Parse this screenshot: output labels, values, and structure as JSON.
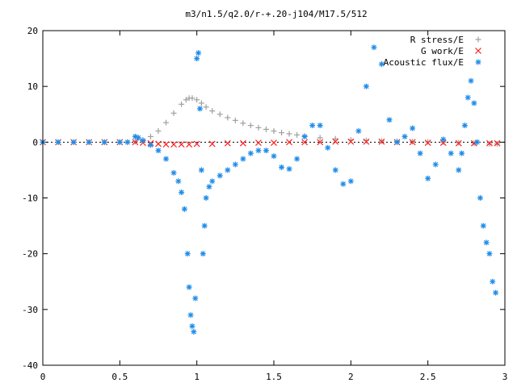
{
  "chart_data": {
    "type": "scatter",
    "title": "m3/n1.5/q2.0/r-+.20-j104/M17.5/512",
    "xlabel": "",
    "ylabel": "",
    "xlim": [
      0,
      3
    ],
    "ylim": [
      -40,
      20
    ],
    "x_ticks": [
      0,
      0.5,
      1,
      1.5,
      2,
      2.5,
      3
    ],
    "x_tick_labels": [
      "0",
      "0.5",
      "1",
      "1.5",
      "2",
      "2.5",
      "3"
    ],
    "y_ticks": [
      -40,
      -30,
      -20,
      -10,
      0,
      10,
      20
    ],
    "y_tick_labels": [
      "-40",
      "-30",
      "-20",
      "-10",
      "0",
      "10",
      "20"
    ],
    "grid": false,
    "legend_position": "top-right",
    "series": [
      {
        "name": "R stress/E",
        "marker": "plus",
        "color": "#a0a0a0",
        "x": [
          0,
          0.1,
          0.2,
          0.3,
          0.4,
          0.5,
          0.55,
          0.6,
          0.65,
          0.7,
          0.75,
          0.8,
          0.85,
          0.9,
          0.93,
          0.95,
          0.97,
          1.0,
          1.03,
          1.06,
          1.1,
          1.15,
          1.2,
          1.25,
          1.3,
          1.35,
          1.4,
          1.45,
          1.5,
          1.55,
          1.6,
          1.65,
          1.7,
          1.8,
          1.9,
          2.0,
          2.1,
          2.2,
          2.3,
          2.4,
          2.5,
          2.6,
          2.7,
          2.8,
          2.9,
          2.95
        ],
        "y": [
          0,
          0,
          0,
          0,
          0,
          0,
          0,
          0.1,
          0.4,
          1.0,
          2.0,
          3.5,
          5.2,
          6.8,
          7.6,
          7.9,
          7.9,
          7.6,
          7.0,
          6.3,
          5.6,
          5.0,
          4.4,
          3.9,
          3.4,
          3.0,
          2.6,
          2.3,
          2.0,
          1.7,
          1.5,
          1.3,
          1.1,
          0.8,
          0.6,
          0.4,
          0.3,
          0.2,
          0.15,
          0.1,
          0.05,
          0,
          -0.1,
          -0.2,
          -0.3,
          -0.3
        ]
      },
      {
        "name": "G work/E",
        "marker": "cross",
        "color": "#ff2020",
        "x": [
          0,
          0.1,
          0.2,
          0.3,
          0.4,
          0.5,
          0.6,
          0.65,
          0.7,
          0.75,
          0.8,
          0.85,
          0.9,
          0.95,
          1.0,
          1.1,
          1.2,
          1.3,
          1.4,
          1.5,
          1.6,
          1.7,
          1.8,
          1.9,
          2.0,
          2.1,
          2.2,
          2.3,
          2.4,
          2.5,
          2.6,
          2.7,
          2.8,
          2.9,
          2.95
        ],
        "y": [
          0,
          0,
          0,
          0,
          0,
          0,
          0,
          -0.1,
          -0.2,
          -0.3,
          -0.4,
          -0.4,
          -0.4,
          -0.4,
          -0.3,
          -0.3,
          -0.2,
          -0.2,
          -0.1,
          -0.1,
          0,
          0,
          0,
          0.1,
          0.1,
          0.1,
          0.1,
          0,
          0,
          -0.1,
          -0.1,
          -0.2,
          -0.2,
          -0.2,
          -0.2
        ]
      },
      {
        "name": "Acoustic flux/E",
        "marker": "star",
        "color": "#1e8ce8",
        "x": [
          0,
          0.1,
          0.2,
          0.3,
          0.4,
          0.5,
          0.55,
          0.6,
          0.62,
          0.65,
          0.7,
          0.75,
          0.8,
          0.85,
          0.88,
          0.9,
          0.92,
          0.94,
          0.95,
          0.96,
          0.97,
          0.98,
          0.99,
          1.0,
          1.01,
          1.02,
          1.03,
          1.04,
          1.05,
          1.06,
          1.08,
          1.1,
          1.15,
          1.2,
          1.25,
          1.3,
          1.35,
          1.4,
          1.45,
          1.5,
          1.55,
          1.6,
          1.65,
          1.7,
          1.75,
          1.8,
          1.85,
          1.9,
          1.95,
          2.0,
          2.05,
          2.1,
          2.15,
          2.2,
          2.25,
          2.3,
          2.35,
          2.4,
          2.45,
          2.5,
          2.55,
          2.6,
          2.65,
          2.7,
          2.72,
          2.74,
          2.76,
          2.78,
          2.8,
          2.82,
          2.84,
          2.86,
          2.88,
          2.9,
          2.92,
          2.94
        ],
        "y": [
          0,
          0,
          0,
          0,
          0,
          0,
          0,
          1.0,
          0.8,
          0.3,
          -0.5,
          -1.5,
          -3.0,
          -5.5,
          -7.0,
          -9.0,
          -12.0,
          -20.0,
          -26.0,
          -31.0,
          -33.0,
          -34.0,
          -28.0,
          15.0,
          16.0,
          6.0,
          -5.0,
          -20.0,
          -15.0,
          -10.0,
          -8.0,
          -7.0,
          -6.0,
          -5.0,
          -4.0,
          -3.0,
          -2.0,
          -1.5,
          -1.5,
          -2.5,
          -4.5,
          -4.8,
          -3.0,
          1.0,
          3.0,
          3.0,
          -1.0,
          -5.0,
          -7.5,
          -7.0,
          2.0,
          10.0,
          17.0,
          14.0,
          4.0,
          0,
          1.0,
          2.5,
          -2.0,
          -6.5,
          -4.0,
          0.5,
          -2.0,
          -5.0,
          -2.0,
          3.0,
          8.0,
          11.0,
          7.0,
          0,
          -10.0,
          -15.0,
          -18.0,
          -20.0,
          -25.0,
          -27.0
        ]
      }
    ]
  }
}
